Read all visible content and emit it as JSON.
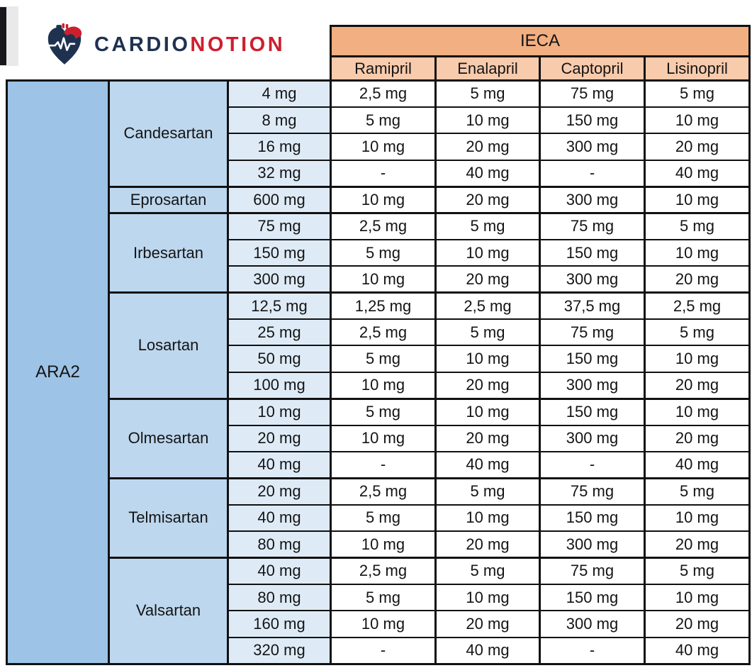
{
  "logo": {
    "brand_primary": "CARDIO",
    "brand_secondary": "NOTION",
    "icon": "heart-ecg-icon"
  },
  "colors": {
    "header_bg": "#F2AF81",
    "subheader_bg": "#F8CBAD",
    "ara2_bg": "#9DC3E6",
    "drug_bg": "#BDD7EE",
    "dose_bg": "#DEEBF7",
    "cell_bg": "#FFFFFF",
    "line": "#111111",
    "navy": "#1E3250",
    "red": "#CE1F2F"
  },
  "table": {
    "group_header": "IECA",
    "row_header": "ARA2",
    "columns": [
      "Ramipril",
      "Enalapril",
      "Captopril",
      "Lisinopril"
    ],
    "groups": [
      {
        "drug": "Candesartan",
        "rows": [
          {
            "dose": "4 mg",
            "values": [
              "2,5 mg",
              "5 mg",
              "75 mg",
              "5 mg"
            ]
          },
          {
            "dose": "8 mg",
            "values": [
              "5 mg",
              "10 mg",
              "150 mg",
              "10 mg"
            ]
          },
          {
            "dose": "16 mg",
            "values": [
              "10 mg",
              "20 mg",
              "300 mg",
              "20 mg"
            ]
          },
          {
            "dose": "32 mg",
            "values": [
              "-",
              "40 mg",
              "-",
              "40 mg"
            ]
          }
        ]
      },
      {
        "drug": "Eprosartan",
        "rows": [
          {
            "dose": "600 mg",
            "values": [
              "10 mg",
              "20 mg",
              "300 mg",
              "10 mg"
            ]
          }
        ]
      },
      {
        "drug": "Irbesartan",
        "rows": [
          {
            "dose": "75 mg",
            "values": [
              "2,5 mg",
              "5 mg",
              "75 mg",
              "5 mg"
            ]
          },
          {
            "dose": "150 mg",
            "values": [
              "5 mg",
              "10 mg",
              "150 mg",
              "10 mg"
            ]
          },
          {
            "dose": "300 mg",
            "values": [
              "10 mg",
              "20 mg",
              "300 mg",
              "20 mg"
            ]
          }
        ]
      },
      {
        "drug": "Losartan",
        "rows": [
          {
            "dose": "12,5 mg",
            "values": [
              "1,25 mg",
              "2,5 mg",
              "37,5 mg",
              "2,5 mg"
            ]
          },
          {
            "dose": "25 mg",
            "values": [
              "2,5 mg",
              "5 mg",
              "75 mg",
              "5 mg"
            ]
          },
          {
            "dose": "50 mg",
            "values": [
              "5 mg",
              "10 mg",
              "150 mg",
              "10 mg"
            ]
          },
          {
            "dose": "100 mg",
            "values": [
              "10 mg",
              "20 mg",
              "300 mg",
              "20 mg"
            ]
          }
        ]
      },
      {
        "drug": "Olmesartan",
        "rows": [
          {
            "dose": "10 mg",
            "values": [
              "5 mg",
              "10 mg",
              "150 mg",
              "10 mg"
            ]
          },
          {
            "dose": "20 mg",
            "values": [
              "10 mg",
              "20 mg",
              "300 mg",
              "20 mg"
            ]
          },
          {
            "dose": "40 mg",
            "values": [
              "-",
              "40 mg",
              "-",
              "40 mg"
            ]
          }
        ]
      },
      {
        "drug": "Telmisartan",
        "rows": [
          {
            "dose": "20 mg",
            "values": [
              "2,5 mg",
              "5 mg",
              "75 mg",
              "5 mg"
            ]
          },
          {
            "dose": "40 mg",
            "values": [
              "5 mg",
              "10 mg",
              "150 mg",
              "10 mg"
            ]
          },
          {
            "dose": "80 mg",
            "values": [
              "10 mg",
              "20 mg",
              "300 mg",
              "20 mg"
            ]
          }
        ]
      },
      {
        "drug": "Valsartan",
        "rows": [
          {
            "dose": "40 mg",
            "values": [
              "2,5 mg",
              "5 mg",
              "75 mg",
              "5 mg"
            ]
          },
          {
            "dose": "80 mg",
            "values": [
              "5 mg",
              "10 mg",
              "150 mg",
              "10 mg"
            ]
          },
          {
            "dose": "160 mg",
            "values": [
              "10 mg",
              "20 mg",
              "300 mg",
              "20 mg"
            ]
          },
          {
            "dose": "320 mg",
            "values": [
              "-",
              "40 mg",
              "-",
              "40 mg"
            ]
          }
        ]
      }
    ]
  }
}
